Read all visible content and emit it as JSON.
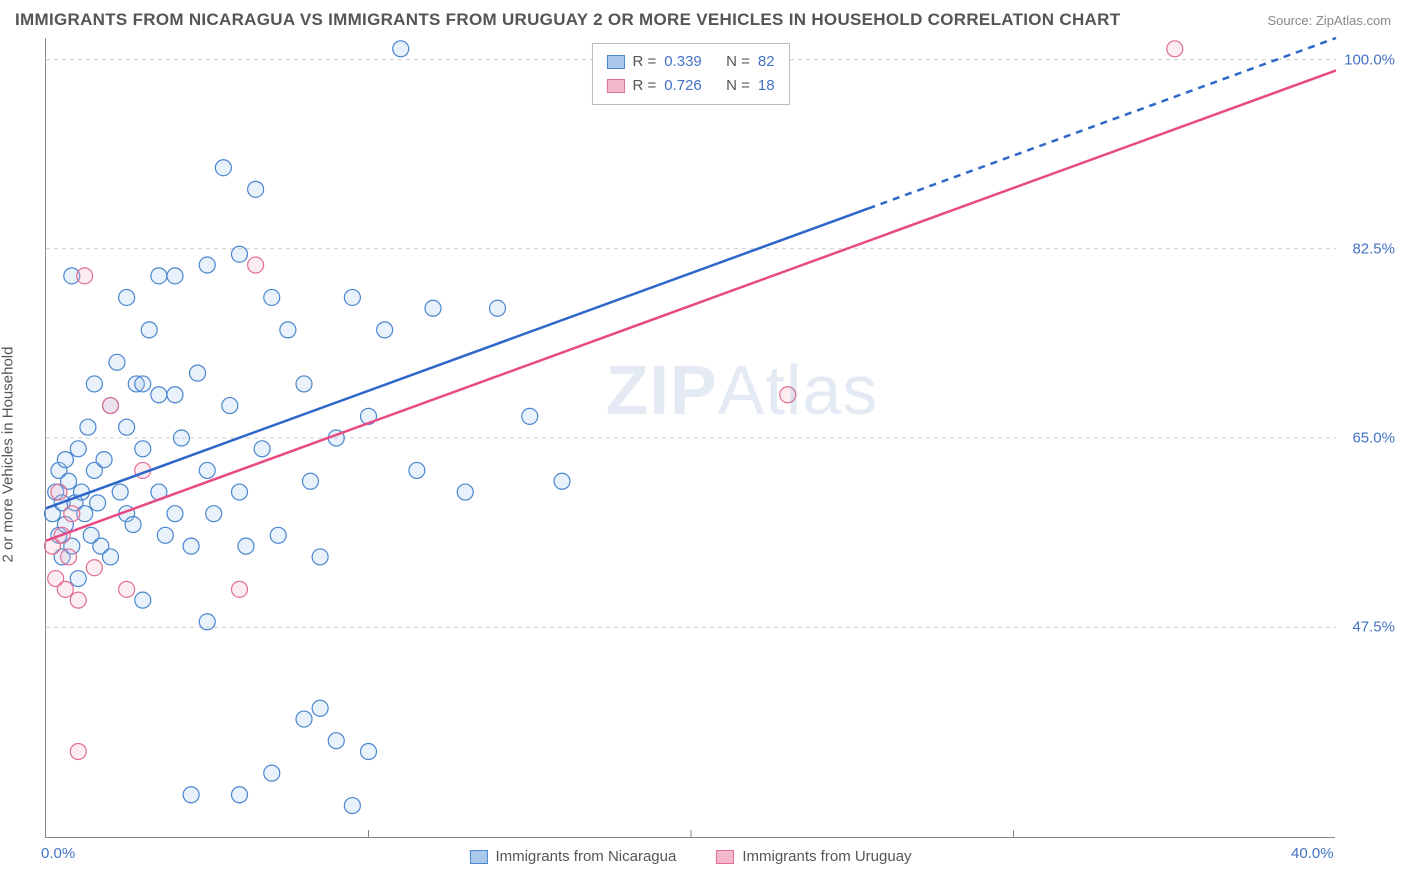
{
  "title": "IMMIGRANTS FROM NICARAGUA VS IMMIGRANTS FROM URUGUAY 2 OR MORE VEHICLES IN HOUSEHOLD CORRELATION CHART",
  "source": "Source: ZipAtlas.com",
  "y_axis_label": "2 or more Vehicles in Household",
  "watermark_a": "ZIP",
  "watermark_b": "Atlas",
  "chart": {
    "type": "scatter",
    "background_color": "#ffffff",
    "grid_color": "#cccccc",
    "grid_dash": "4 4",
    "border_color": "#888888",
    "xlim": [
      0.0,
      40.0
    ],
    "ylim": [
      28.0,
      102.0
    ],
    "x_ticks": [
      {
        "value": 0.0,
        "label": "0.0%"
      },
      {
        "value": 40.0,
        "label": "40.0%"
      }
    ],
    "x_tick_minor": [
      10.0,
      20.0,
      30.0
    ],
    "y_ticks": [
      {
        "value": 47.5,
        "label": "47.5%"
      },
      {
        "value": 65.0,
        "label": "65.0%"
      },
      {
        "value": 82.5,
        "label": "82.5%"
      },
      {
        "value": 100.0,
        "label": "100.0%"
      }
    ],
    "tick_label_color": "#4472c4",
    "tick_label_fontsize": 15,
    "axis_label_fontsize": 15,
    "title_fontsize": 17,
    "marker_radius": 8,
    "marker_fill_opacity": 0.25,
    "marker_stroke_width": 1.2,
    "trend_line_width": 2.5,
    "trend_dash_extension": "7 6",
    "series": [
      {
        "name": "Immigrants from Nicaragua",
        "key": "nicaragua",
        "color_stroke": "#4a86d0",
        "color_fill": "#a9c8ec",
        "trend_color": "#2f67c9",
        "r_value": "0.339",
        "n_value": "82",
        "trend": {
          "x1": 0.0,
          "y1": 58.5,
          "x2": 40.0,
          "y2": 102.0,
          "solid_until_x": 25.5
        },
        "points": [
          [
            0.2,
            58
          ],
          [
            0.3,
            60
          ],
          [
            0.4,
            56
          ],
          [
            0.4,
            62
          ],
          [
            0.5,
            54
          ],
          [
            0.5,
            59
          ],
          [
            0.6,
            63
          ],
          [
            0.6,
            57
          ],
          [
            0.7,
            61
          ],
          [
            0.8,
            55
          ],
          [
            0.8,
            80
          ],
          [
            0.9,
            59
          ],
          [
            1.0,
            64
          ],
          [
            1.0,
            52
          ],
          [
            1.1,
            60
          ],
          [
            1.2,
            58
          ],
          [
            1.3,
            66
          ],
          [
            1.4,
            56
          ],
          [
            1.5,
            62
          ],
          [
            1.5,
            70
          ],
          [
            1.6,
            59
          ],
          [
            1.7,
            55
          ],
          [
            1.8,
            63
          ],
          [
            2.0,
            68
          ],
          [
            2.0,
            54
          ],
          [
            2.2,
            72
          ],
          [
            2.3,
            60
          ],
          [
            2.5,
            66
          ],
          [
            2.5,
            58
          ],
          [
            2.7,
            57
          ],
          [
            2.8,
            70
          ],
          [
            3.0,
            64
          ],
          [
            3.0,
            50
          ],
          [
            3.2,
            75
          ],
          [
            3.5,
            60
          ],
          [
            3.5,
            69
          ],
          [
            3.7,
            56
          ],
          [
            4.0,
            58
          ],
          [
            4.0,
            80
          ],
          [
            4.2,
            65
          ],
          [
            4.5,
            55
          ],
          [
            4.7,
            71
          ],
          [
            5.0,
            62
          ],
          [
            5.0,
            81
          ],
          [
            5.2,
            58
          ],
          [
            5.5,
            90
          ],
          [
            5.7,
            68
          ],
          [
            6.0,
            60
          ],
          [
            6.0,
            82
          ],
          [
            6.2,
            55
          ],
          [
            6.5,
            88
          ],
          [
            6.7,
            64
          ],
          [
            7.0,
            78
          ],
          [
            7.2,
            56
          ],
          [
            7.5,
            75
          ],
          [
            8.0,
            70
          ],
          [
            8.0,
            39
          ],
          [
            8.2,
            61
          ],
          [
            8.5,
            54
          ],
          [
            9.0,
            65
          ],
          [
            9.5,
            78
          ],
          [
            10.0,
            67
          ],
          [
            10.5,
            75
          ],
          [
            11.0,
            101
          ],
          [
            11.5,
            62
          ],
          [
            12.0,
            77
          ],
          [
            13.0,
            60
          ],
          [
            14.0,
            77
          ],
          [
            15.0,
            67
          ],
          [
            16.0,
            61
          ],
          [
            4.5,
            32
          ],
          [
            5.0,
            48
          ],
          [
            6.0,
            32
          ],
          [
            7.0,
            34
          ],
          [
            8.5,
            40
          ],
          [
            9.0,
            37
          ],
          [
            9.5,
            31
          ],
          [
            10.0,
            36
          ],
          [
            3.0,
            70
          ],
          [
            3.5,
            80
          ],
          [
            4.0,
            69
          ],
          [
            2.5,
            78
          ]
        ]
      },
      {
        "name": "Immigrants from Uruguay",
        "key": "uruguay",
        "color_stroke": "#e06f92",
        "color_fill": "#f3b8ca",
        "trend_color": "#e84b83",
        "r_value": "0.726",
        "n_value": "18",
        "trend": {
          "x1": 0.0,
          "y1": 55.5,
          "x2": 40.0,
          "y2": 99.0,
          "solid_until_x": 40.0
        },
        "points": [
          [
            0.2,
            55
          ],
          [
            0.3,
            52
          ],
          [
            0.4,
            60
          ],
          [
            0.5,
            56
          ],
          [
            0.6,
            51
          ],
          [
            0.7,
            54
          ],
          [
            0.8,
            58
          ],
          [
            1.0,
            50
          ],
          [
            1.2,
            80
          ],
          [
            1.5,
            53
          ],
          [
            2.0,
            68
          ],
          [
            2.5,
            51
          ],
          [
            3.0,
            62
          ],
          [
            1.0,
            36
          ],
          [
            6.0,
            51
          ],
          [
            6.5,
            81
          ],
          [
            23.0,
            69
          ],
          [
            35.0,
            101
          ]
        ]
      }
    ],
    "legend_top": {
      "r_label": "R =",
      "n_label": "N ="
    },
    "legend_bottom_labels": {
      "nicaragua": "Immigrants from Nicaragua",
      "uruguay": "Immigrants from Uruguay"
    }
  }
}
